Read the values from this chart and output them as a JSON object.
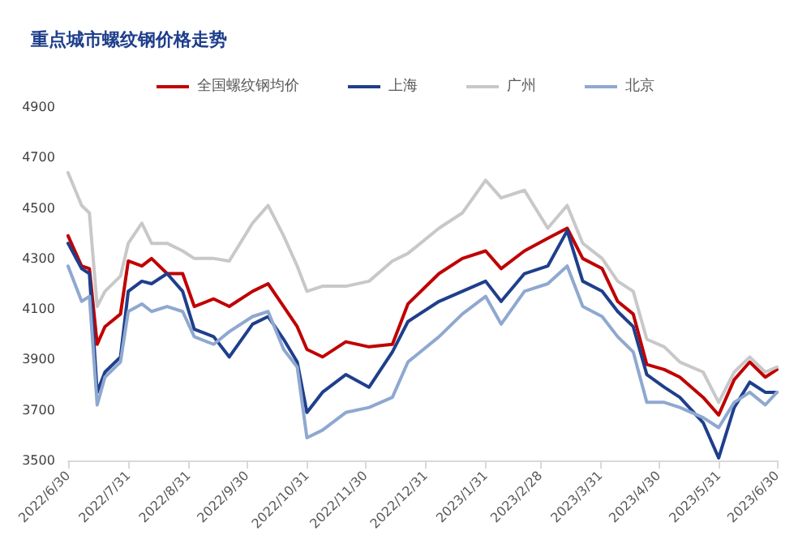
{
  "chart_data": {
    "type": "line",
    "title": "重点城市螺纹钢价格走势",
    "x": [
      "2022-06-30",
      "2022-07-07",
      "2022-07-11",
      "2022-07-15",
      "2022-07-19",
      "2022-07-27",
      "2022-07-31",
      "2022-08-07",
      "2022-08-12",
      "2022-08-20",
      "2022-08-28",
      "2022-09-03",
      "2022-09-13",
      "2022-09-21",
      "2022-10-03",
      "2022-10-11",
      "2022-10-19",
      "2022-10-26",
      "2022-10-31",
      "2022-11-08",
      "2022-11-20",
      "2022-12-02",
      "2022-12-14",
      "2022-12-22",
      "2023-01-07",
      "2023-01-19",
      "2023-01-31",
      "2023-02-08",
      "2023-02-20",
      "2023-03-04",
      "2023-03-14",
      "2023-03-22",
      "2023-04-01",
      "2023-04-09",
      "2023-04-17",
      "2023-04-24",
      "2023-05-03",
      "2023-05-11",
      "2023-05-23",
      "2023-05-31",
      "2023-06-08",
      "2023-06-16",
      "2023-06-24",
      "2023-06-30"
    ],
    "series": [
      {
        "name": "全国螺纹钢均价",
        "color": "#c00000",
        "values": [
          4390,
          4270,
          4260,
          3960,
          4030,
          4080,
          4290,
          4270,
          4300,
          4240,
          4240,
          4110,
          4140,
          4110,
          4170,
          4200,
          4110,
          4030,
          3940,
          3910,
          3970,
          3950,
          3960,
          4120,
          4240,
          4300,
          4330,
          4260,
          4330,
          4380,
          4420,
          4300,
          4260,
          4130,
          4080,
          3880,
          3860,
          3830,
          3750,
          3680,
          3820,
          3890,
          3830,
          3860
        ]
      },
      {
        "name": "上海",
        "color": "#1f3f8c",
        "values": [
          4360,
          4260,
          4240,
          3770,
          3850,
          3910,
          4170,
          4210,
          4200,
          4240,
          4170,
          4020,
          3990,
          3910,
          4040,
          4070,
          3980,
          3890,
          3690,
          3770,
          3840,
          3790,
          3930,
          4050,
          4130,
          4170,
          4210,
          4130,
          4240,
          4270,
          4410,
          4210,
          4170,
          4090,
          4030,
          3840,
          3790,
          3750,
          3650,
          3510,
          3710,
          3810,
          3770,
          3770
        ]
      },
      {
        "name": "广州",
        "color": "#c8c8c8",
        "values": [
          4640,
          4510,
          4480,
          4110,
          4170,
          4230,
          4360,
          4440,
          4360,
          4360,
          4330,
          4300,
          4300,
          4290,
          4440,
          4510,
          4390,
          4270,
          4170,
          4190,
          4190,
          4210,
          4290,
          4320,
          4420,
          4480,
          4610,
          4540,
          4570,
          4420,
          4510,
          4360,
          4300,
          4210,
          4170,
          3980,
          3950,
          3890,
          3850,
          3730,
          3850,
          3910,
          3850,
          3870
        ]
      },
      {
        "name": "北京",
        "color": "#8fa8d0",
        "values": [
          4270,
          4130,
          4150,
          3720,
          3830,
          3890,
          4090,
          4120,
          4090,
          4110,
          4090,
          3990,
          3960,
          4010,
          4070,
          4090,
          3940,
          3870,
          3590,
          3620,
          3690,
          3710,
          3750,
          3890,
          3990,
          4080,
          4150,
          4040,
          4170,
          4200,
          4270,
          4110,
          4070,
          3990,
          3930,
          3730,
          3730,
          3710,
          3670,
          3630,
          3730,
          3770,
          3720,
          3770
        ]
      }
    ],
    "xlim": [
      "2022-06-30",
      "2023-06-30"
    ],
    "xticks": [
      {
        "value": "2022-06-30",
        "label": "2022/6/30"
      },
      {
        "value": "2022-07-31",
        "label": "2022/7/31"
      },
      {
        "value": "2022-08-31",
        "label": "2022/8/31"
      },
      {
        "value": "2022-09-30",
        "label": "2022/9/30"
      },
      {
        "value": "2022-10-31",
        "label": "2022/10/31"
      },
      {
        "value": "2022-11-30",
        "label": "2022/11/30"
      },
      {
        "value": "2022-12-31",
        "label": "2022/12/31"
      },
      {
        "value": "2023-01-31",
        "label": "2023/1/31"
      },
      {
        "value": "2023-02-28",
        "label": "2023/2/28"
      },
      {
        "value": "2023-03-31",
        "label": "2023/3/31"
      },
      {
        "value": "2023-04-30",
        "label": "2023/4/30"
      },
      {
        "value": "2023-05-31",
        "label": "2023/5/31"
      },
      {
        "value": "2023-06-30",
        "label": "2023/6/30"
      }
    ],
    "ylim": [
      3500,
      4900
    ],
    "yticks": [
      3500,
      3700,
      3900,
      4100,
      4300,
      4500,
      4700,
      4900
    ],
    "grid": false,
    "legend": "top",
    "marker": "none",
    "line_style": "solid"
  }
}
